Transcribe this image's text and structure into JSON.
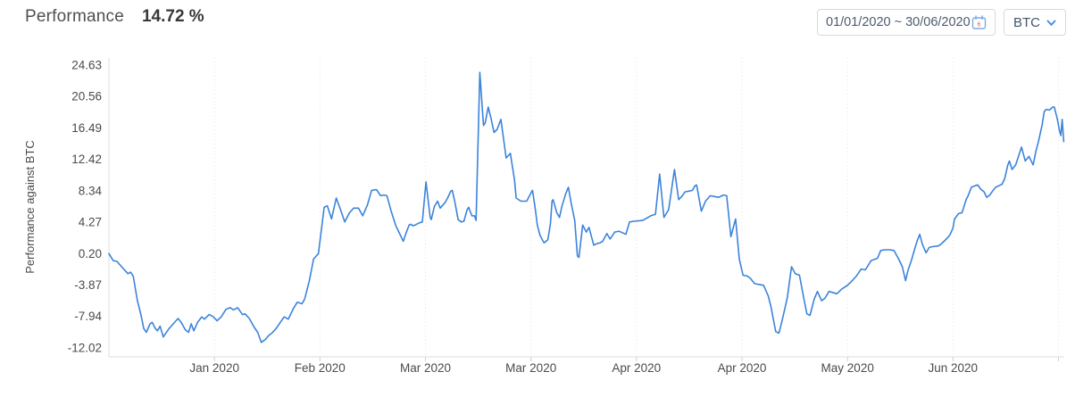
{
  "header": {
    "title": "Performance",
    "value": "14.72 %"
  },
  "controls": {
    "date_range": "01/01/2020 ~ 30/06/2020",
    "calendar_day": "6",
    "asset": "BTC"
  },
  "colors": {
    "line": "#3c83db",
    "accent": "#4a90e2",
    "axis": "#dcdcdc",
    "grid": "#e4e4e4",
    "tick": "#cfcfcf",
    "label": "#4b4b4b",
    "axis_title": "#4a4a4a"
  },
  "chart_data": {
    "type": "line",
    "title": "Performance",
    "ylabel": "Performance against BTC",
    "series_name": "Performance against BTC (%)",
    "x_range_days": [
      0,
      181
    ],
    "x_start_date": "01/01/2020",
    "x_end_date": "30/06/2020",
    "x_tick_days": [
      20,
      40,
      60,
      80,
      100,
      120,
      140,
      160,
      180
    ],
    "x_tick_labels": [
      "Jan 2020",
      "Feb 2020",
      "Mar 2020",
      "Mar 2020",
      "Apr 2020",
      "Apr 2020",
      "May 2020",
      "Jun 2020",
      ""
    ],
    "y_ticks": [
      24.63,
      20.56,
      16.49,
      12.42,
      8.34,
      4.27,
      0.2,
      -3.87,
      -7.94,
      -12.02
    ],
    "ylim": [
      -13.2,
      25.6
    ],
    "grid": "vertical-dotted",
    "legend": "none",
    "points": [
      [
        0,
        0.2
      ],
      [
        0.8,
        -0.7
      ],
      [
        1.5,
        -0.8
      ],
      [
        2.4,
        -1.5
      ],
      [
        3.6,
        -2.4
      ],
      [
        4.1,
        -2.2
      ],
      [
        4.6,
        -2.7
      ],
      [
        5.4,
        -5.9
      ],
      [
        6.1,
        -7.8
      ],
      [
        6.6,
        -9.5
      ],
      [
        7.1,
        -10.0
      ],
      [
        7.8,
        -8.9
      ],
      [
        8.2,
        -8.7
      ],
      [
        8.8,
        -9.5
      ],
      [
        9.2,
        -9.8
      ],
      [
        9.7,
        -9.2
      ],
      [
        10.3,
        -10.6
      ],
      [
        11.4,
        -9.5
      ],
      [
        12.2,
        -8.9
      ],
      [
        13.1,
        -8.2
      ],
      [
        13.7,
        -8.7
      ],
      [
        14.5,
        -9.7
      ],
      [
        15.1,
        -10.0
      ],
      [
        15.6,
        -8.9
      ],
      [
        16.1,
        -9.8
      ],
      [
        16.8,
        -8.7
      ],
      [
        17.6,
        -8.0
      ],
      [
        18.1,
        -8.3
      ],
      [
        19,
        -7.7
      ],
      [
        19.8,
        -8.0
      ],
      [
        20.5,
        -8.5
      ],
      [
        21.3,
        -8.0
      ],
      [
        22.2,
        -7.0
      ],
      [
        23,
        -6.8
      ],
      [
        23.6,
        -7.1
      ],
      [
        24.4,
        -6.8
      ],
      [
        25.3,
        -7.7
      ],
      [
        25.8,
        -7.6
      ],
      [
        26.6,
        -8.2
      ],
      [
        27.5,
        -9.3
      ],
      [
        28.2,
        -10.0
      ],
      [
        28.9,
        -11.3
      ],
      [
        29.7,
        -10.9
      ],
      [
        30.3,
        -10.4
      ],
      [
        30.9,
        -10.1
      ],
      [
        31.7,
        -9.5
      ],
      [
        32.6,
        -8.6
      ],
      [
        33.2,
        -8.0
      ],
      [
        34,
        -8.3
      ],
      [
        34.9,
        -7.0
      ],
      [
        35.7,
        -6.1
      ],
      [
        36.6,
        -6.3
      ],
      [
        37.1,
        -5.7
      ],
      [
        38,
        -3.3
      ],
      [
        38.8,
        -0.5
      ],
      [
        39.7,
        0.2
      ],
      [
        40.8,
        6.2
      ],
      [
        41.4,
        6.4
      ],
      [
        42.2,
        4.7
      ],
      [
        43.1,
        7.4
      ],
      [
        43.9,
        5.9
      ],
      [
        44.7,
        4.3
      ],
      [
        45.6,
        5.5
      ],
      [
        46.4,
        6.1
      ],
      [
        47.3,
        6.1
      ],
      [
        48.1,
        5.1
      ],
      [
        49,
        6.5
      ],
      [
        49.8,
        8.4
      ],
      [
        50.7,
        8.5
      ],
      [
        51.5,
        7.7
      ],
      [
        52.1,
        7.8
      ],
      [
        52.7,
        7.7
      ],
      [
        53.5,
        5.7
      ],
      [
        54.4,
        3.8
      ],
      [
        55.8,
        1.8
      ],
      [
        56.3,
        2.8
      ],
      [
        56.9,
        3.9
      ],
      [
        57.2,
        4.0
      ],
      [
        57.7,
        3.8
      ],
      [
        58.9,
        4.2
      ],
      [
        59.4,
        4.3
      ],
      [
        60.1,
        9.5
      ],
      [
        60.9,
        4.9
      ],
      [
        61.1,
        4.6
      ],
      [
        61.7,
        6.3
      ],
      [
        62.3,
        7.0
      ],
      [
        62.8,
        6.1
      ],
      [
        63.7,
        6.8
      ],
      [
        64.2,
        7.4
      ],
      [
        64.8,
        8.3
      ],
      [
        65.1,
        8.4
      ],
      [
        65.6,
        6.8
      ],
      [
        66.2,
        4.6
      ],
      [
        66.8,
        4.3
      ],
      [
        67.3,
        4.4
      ],
      [
        67.9,
        5.9
      ],
      [
        68.2,
        6.2
      ],
      [
        68.8,
        5.1
      ],
      [
        69.3,
        5.1
      ],
      [
        69.6,
        4.5
      ],
      [
        70.3,
        23.7
      ],
      [
        71,
        16.8
      ],
      [
        71.3,
        17.1
      ],
      [
        71.9,
        19.2
      ],
      [
        72.4,
        17.8
      ],
      [
        73,
        15.9
      ],
      [
        73.6,
        16.3
      ],
      [
        74.3,
        17.6
      ],
      [
        75.3,
        12.6
      ],
      [
        76.1,
        13.2
      ],
      [
        76.9,
        9.7
      ],
      [
        77.2,
        7.4
      ],
      [
        78.1,
        7.0
      ],
      [
        79.2,
        7.0
      ],
      [
        80.1,
        8.2
      ],
      [
        80.3,
        8.4
      ],
      [
        80.8,
        6.1
      ],
      [
        81.2,
        3.9
      ],
      [
        81.7,
        2.6
      ],
      [
        82.3,
        1.8
      ],
      [
        82.5,
        1.6
      ],
      [
        83.2,
        2.0
      ],
      [
        83.7,
        4.1
      ],
      [
        84,
        7.0
      ],
      [
        84.2,
        7.2
      ],
      [
        84.9,
        5.5
      ],
      [
        85.4,
        4.9
      ],
      [
        85.9,
        6.4
      ],
      [
        86.6,
        8.0
      ],
      [
        87.1,
        8.8
      ],
      [
        87.6,
        6.8
      ],
      [
        88.3,
        4.5
      ],
      [
        88.8,
        -0.1
      ],
      [
        89.1,
        -0.3
      ],
      [
        89.8,
        3.9
      ],
      [
        90.5,
        3.0
      ],
      [
        91,
        3.6
      ],
      [
        91.9,
        1.3
      ],
      [
        92.5,
        1.5
      ],
      [
        93.1,
        1.6
      ],
      [
        93.6,
        1.8
      ],
      [
        94.4,
        2.8
      ],
      [
        95,
        2.1
      ],
      [
        95.9,
        3.0
      ],
      [
        96.7,
        3.1
      ],
      [
        98,
        2.7
      ],
      [
        98.7,
        4.3
      ],
      [
        99.5,
        4.4
      ],
      [
        101.2,
        4.5
      ],
      [
        102.7,
        5.1
      ],
      [
        103.6,
        5.3
      ],
      [
        104.4,
        10.5
      ],
      [
        105.2,
        4.9
      ],
      [
        106.1,
        5.9
      ],
      [
        107.2,
        11.1
      ],
      [
        108,
        7.2
      ],
      [
        108.6,
        7.6
      ],
      [
        109.2,
        8.2
      ],
      [
        110,
        8.3
      ],
      [
        110.6,
        8.4
      ],
      [
        111.1,
        9.0
      ],
      [
        111.4,
        9.1
      ],
      [
        112.3,
        5.7
      ],
      [
        113.1,
        7.0
      ],
      [
        114,
        7.7
      ],
      [
        114.8,
        7.6
      ],
      [
        115.6,
        7.5
      ],
      [
        116.5,
        7.8
      ],
      [
        117.1,
        7.7
      ],
      [
        117.9,
        2.4
      ],
      [
        118.8,
        4.7
      ],
      [
        119.5,
        -0.5
      ],
      [
        120.2,
        -2.6
      ],
      [
        121,
        -2.7
      ],
      [
        121.6,
        -3.0
      ],
      [
        122.4,
        -3.7
      ],
      [
        123.3,
        -3.8
      ],
      [
        124.1,
        -3.9
      ],
      [
        125,
        -5.3
      ],
      [
        125.5,
        -6.7
      ],
      [
        126.4,
        -9.9
      ],
      [
        127,
        -10.1
      ],
      [
        127.5,
        -8.8
      ],
      [
        128.1,
        -7.0
      ],
      [
        128.6,
        -5.5
      ],
      [
        129.4,
        -1.5
      ],
      [
        130.1,
        -2.4
      ],
      [
        130.9,
        -2.6
      ],
      [
        131.7,
        -5.5
      ],
      [
        132.3,
        -7.6
      ],
      [
        132.9,
        -7.8
      ],
      [
        133.7,
        -5.7
      ],
      [
        134.3,
        -4.7
      ],
      [
        135.1,
        -5.9
      ],
      [
        135.7,
        -5.6
      ],
      [
        136.5,
        -4.7
      ],
      [
        138,
        -5.0
      ],
      [
        138.9,
        -4.4
      ],
      [
        140,
        -3.9
      ],
      [
        140.9,
        -3.3
      ],
      [
        141.7,
        -2.7
      ],
      [
        142.6,
        -1.8
      ],
      [
        143.4,
        -1.9
      ],
      [
        144.5,
        -0.7
      ],
      [
        145.7,
        -0.4
      ],
      [
        146.3,
        0.6
      ],
      [
        147.1,
        0.7
      ],
      [
        148,
        0.7
      ],
      [
        148.8,
        0.6
      ],
      [
        149.7,
        -0.5
      ],
      [
        150.4,
        -1.5
      ],
      [
        151,
        -3.3
      ],
      [
        151.5,
        -1.9
      ],
      [
        152.1,
        -0.7
      ],
      [
        152.7,
        0.7
      ],
      [
        153.2,
        1.8
      ],
      [
        153.7,
        2.7
      ],
      [
        154.2,
        1.4
      ],
      [
        154.9,
        0.3
      ],
      [
        155.5,
        1.0
      ],
      [
        156.1,
        1.1
      ],
      [
        157.2,
        1.2
      ],
      [
        157.7,
        1.4
      ],
      [
        158.3,
        1.8
      ],
      [
        158.9,
        2.2
      ],
      [
        159.4,
        2.6
      ],
      [
        160,
        3.5
      ],
      [
        160.3,
        4.7
      ],
      [
        161.1,
        5.4
      ],
      [
        161.7,
        5.5
      ],
      [
        162,
        6.1
      ],
      [
        162.5,
        7.2
      ],
      [
        162.8,
        7.6
      ],
      [
        163.5,
        8.8
      ],
      [
        164.2,
        9.0
      ],
      [
        164.7,
        9.1
      ],
      [
        165.2,
        8.6
      ],
      [
        165.9,
        8.2
      ],
      [
        166.4,
        7.5
      ],
      [
        167,
        7.8
      ],
      [
        167.6,
        8.4
      ],
      [
        168.1,
        8.8
      ],
      [
        168.7,
        9.0
      ],
      [
        169.3,
        9.2
      ],
      [
        169.8,
        9.9
      ],
      [
        170.4,
        11.7
      ],
      [
        170.7,
        12.2
      ],
      [
        171.2,
        11.1
      ],
      [
        171.9,
        11.7
      ],
      [
        173,
        14.0
      ],
      [
        173.7,
        12.2
      ],
      [
        174.4,
        12.8
      ],
      [
        175.2,
        11.7
      ],
      [
        175.7,
        13.4
      ],
      [
        176.2,
        14.7
      ],
      [
        176.9,
        16.9
      ],
      [
        177.3,
        18.6
      ],
      [
        177.7,
        18.9
      ],
      [
        178.3,
        18.8
      ],
      [
        178.9,
        19.2
      ],
      [
        179.2,
        19.2
      ],
      [
        179.8,
        17.6
      ],
      [
        180.2,
        16.1
      ],
      [
        180.45,
        15.5
      ],
      [
        180.7,
        17.6
      ],
      [
        181,
        14.72
      ]
    ]
  }
}
